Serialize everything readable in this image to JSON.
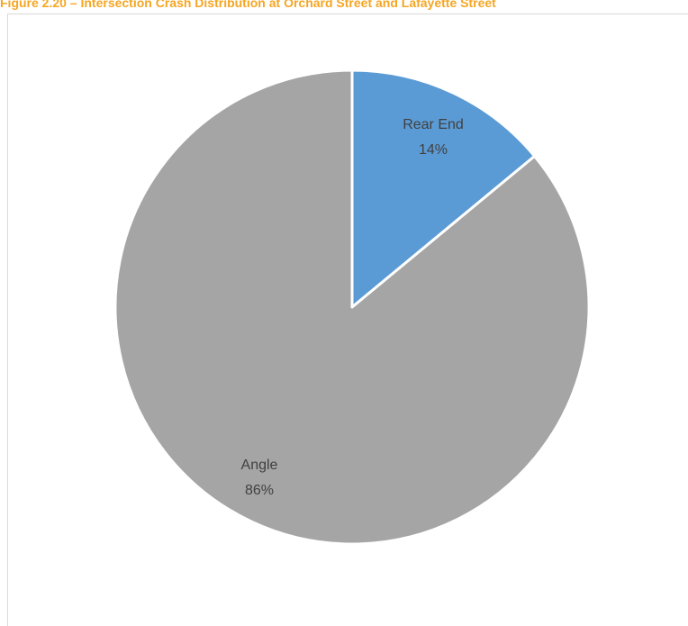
{
  "caption": {
    "text": "Figure 2.20 – Intersection Crash Distribution at Orchard Street and Lafayette Street",
    "color": "#f5a623"
  },
  "chart_data": {
    "type": "pie",
    "slices": [
      {
        "name": "Rear End",
        "percent_label": "14%",
        "value": 14,
        "color": "#5b9bd5"
      },
      {
        "name": "Angle",
        "percent_label": "86%",
        "value": 86,
        "color": "#a5a5a5"
      }
    ],
    "start_angle_deg": 0,
    "direction": "clockwise",
    "legend": "none",
    "slice_border_color": "#ffffff"
  }
}
